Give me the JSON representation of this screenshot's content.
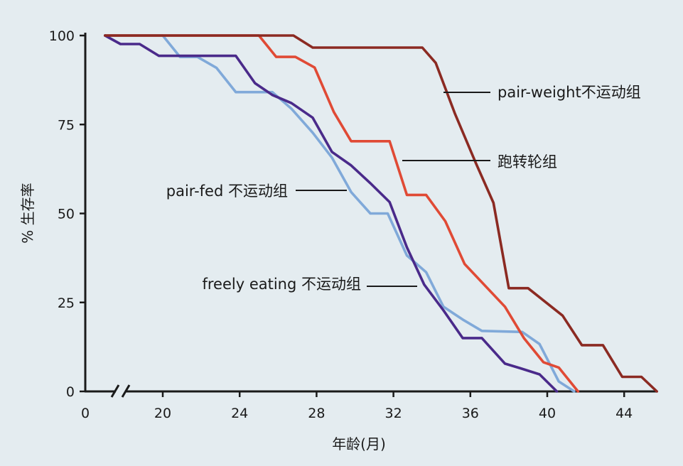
{
  "chart_data": {
    "type": "line",
    "xlabel": "年龄(月)",
    "ylabel": "% 生存率",
    "xlim": [
      16,
      46
    ],
    "ylim": [
      0,
      100
    ],
    "x_ticks": [
      "0",
      "20",
      "24",
      "28",
      "32",
      "36",
      "40",
      "44"
    ],
    "y_ticks": [
      "0",
      "25",
      "50",
      "75",
      "100"
    ],
    "axis_break": true,
    "background": "#e4ecf0",
    "series": [
      {
        "name": "pair-weight不运动组",
        "color": "#8b2a22",
        "x": [
          17,
          26.8,
          27.8,
          33.5,
          34.2,
          35.2,
          36.3,
          37.2,
          38.0,
          39.0,
          40.8,
          41.8,
          42.9,
          43.9,
          44.9,
          45.7
        ],
        "y": [
          100,
          100,
          96.6,
          96.6,
          92.3,
          78,
          64,
          53,
          29,
          29,
          21.3,
          13,
          13,
          4.1,
          4.1,
          0
        ]
      },
      {
        "name": "跑转轮组",
        "color": "#e04a35",
        "x": [
          17,
          25.0,
          25.9,
          26.9,
          27.9,
          28.9,
          29.8,
          31.8,
          32.7,
          33.7,
          34.7,
          35.7,
          37.8,
          38.8,
          39.8,
          40.6,
          41.6
        ],
        "y": [
          100,
          100,
          94.0,
          94.0,
          91.0,
          78.5,
          70.3,
          70.3,
          55.2,
          55.2,
          47.8,
          35.8,
          23.8,
          14.9,
          8.2,
          6.7,
          0
        ]
      },
      {
        "name": "pair-fed 不运动组",
        "color": "#80a9d9",
        "x": [
          17,
          20.0,
          20.9,
          21.8,
          22.8,
          23.8,
          24.8,
          25.7,
          26.7,
          27.8,
          28.8,
          29.8,
          30.8,
          31.7,
          32.7,
          33.7,
          34.6,
          35.6,
          36.6,
          38.7,
          39.6,
          40.6,
          41.4
        ],
        "y": [
          100,
          100,
          94.0,
          94.0,
          90.9,
          84.1,
          84.1,
          84.1,
          79.4,
          72.7,
          65.7,
          56.0,
          50.0,
          50.0,
          38.2,
          33.5,
          23.8,
          20.2,
          17.0,
          16.7,
          13.3,
          2.8,
          0
        ]
      },
      {
        "name": "freely eating 不运动组",
        "color": "#4a2a8a",
        "x": [
          17,
          17.8,
          18.8,
          19.8,
          20.8,
          21.8,
          22.7,
          23.8,
          24.8,
          25.7,
          26.7,
          27.8,
          28.8,
          29.8,
          30.8,
          31.8,
          32.7,
          33.6,
          34.6,
          35.6,
          36.6,
          37.8,
          38.6,
          39.6,
          40.5
        ],
        "y": [
          100,
          97.6,
          97.6,
          94.3,
          94.3,
          94.3,
          94.3,
          94.3,
          86.6,
          83.3,
          81.0,
          76.9,
          67.3,
          63.5,
          58.5,
          53.2,
          40.5,
          30.0,
          22.8,
          15.0,
          15.0,
          7.8,
          6.5,
          4.8,
          0
        ]
      }
    ],
    "annotations": [
      {
        "text": "pair-weight不运动组",
        "series": 0
      },
      {
        "text": "跑转轮组",
        "series": 1
      },
      {
        "text": "pair-fed 不运动组",
        "series": 2
      },
      {
        "text": "freely eating 不运动组",
        "series": 3
      }
    ]
  }
}
